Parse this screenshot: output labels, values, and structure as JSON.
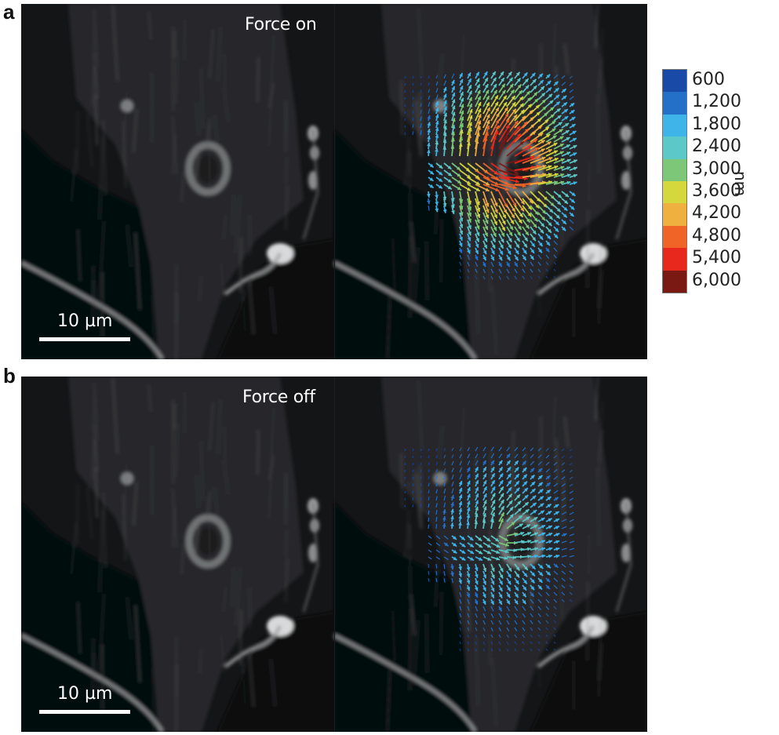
{
  "panels": [
    {
      "letter": "a",
      "condition_label": "Force on",
      "scale_bar_label": "10 µm",
      "vector_field": "strong"
    },
    {
      "letter": "b",
      "condition_label": "Force off",
      "scale_bar_label": "10 µm",
      "vector_field": "weak"
    }
  ],
  "colorbar": {
    "unit": "nm",
    "entries": [
      {
        "label": "600",
        "color": "#1a4aa8"
      },
      {
        "label": "1,200",
        "color": "#2470c8"
      },
      {
        "label": "1,800",
        "color": "#3fb4e8"
      },
      {
        "label": "2,400",
        "color": "#5cc8c8"
      },
      {
        "label": "3,000",
        "color": "#7cc878"
      },
      {
        "label": "3,600",
        "color": "#d4d83c"
      },
      {
        "label": "4,200",
        "color": "#f0b040"
      },
      {
        "label": "4,800",
        "color": "#f06428"
      },
      {
        "label": "5,400",
        "color": "#e8281c"
      },
      {
        "label": "6,000",
        "color": "#7a1814"
      }
    ]
  }
}
